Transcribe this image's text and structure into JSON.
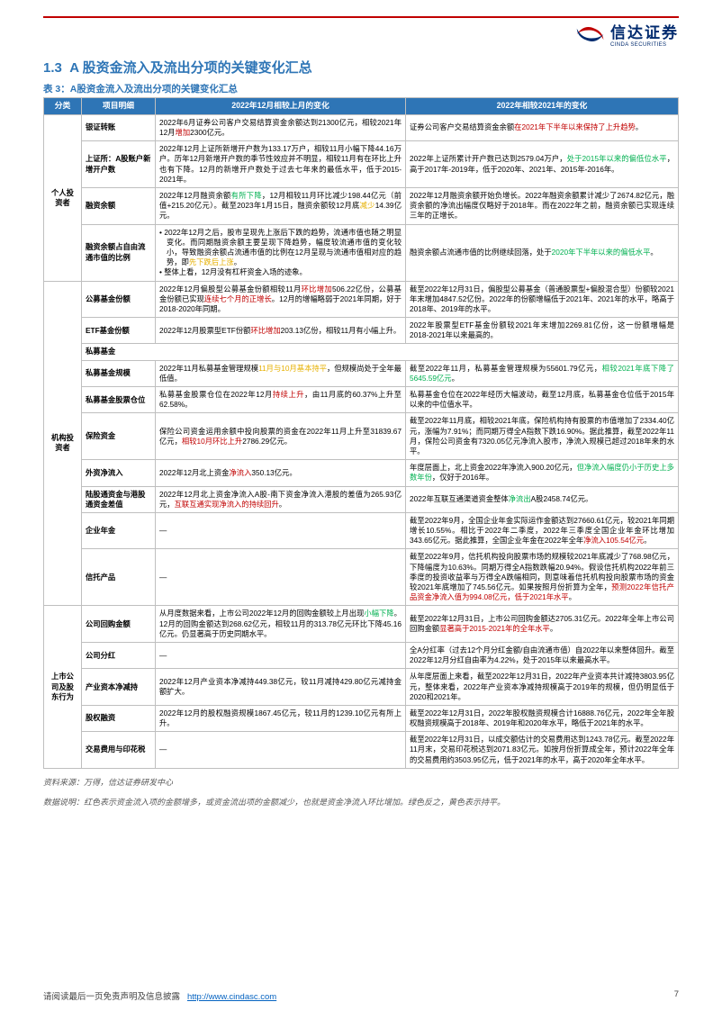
{
  "logo": {
    "cn": "信达证券",
    "en": "CINDA SECURITIES"
  },
  "section_number": "1.3",
  "section_title": "A 股资金流入及流出分项的关键变化汇总",
  "table_title": "表 3：A股资金流入及流出分项的关键变化汇总",
  "columns": [
    "分类",
    "项目明细",
    "2022年12月相较上月的变化",
    "2022年相较2021年的变化"
  ],
  "col_widths": [
    "42px",
    "82px",
    "auto",
    "auto"
  ],
  "header_bg": "#2e75b6",
  "header_color": "#ffffff",
  "border_color": "#bfbfbf",
  "colors": {
    "increase": "#c00000",
    "decrease": "#00b050",
    "flat": "#e6b000"
  },
  "rows": [
    {
      "category": "个人投资者",
      "rowspan": 4,
      "items": [
        {
          "name": "银证转账",
          "m": "2022年6月证券公司客户交易结算资金余额达到21300亿元，相较2021年12月<r>增加</r>2300亿元。",
          "y": "证券公司客户交易结算资金余额<r>在2021年下半年以来保持了上升趋势</r>。"
        },
        {
          "name": "上证所：A股账户新增开户数",
          "m": "2022年12月上证所新增开户数为133.17万户，相较11月小幅下降44.16万户。历年12月新增开户数的季节性效应并不明显，相较11月有在环比上升也有下降。12月的新增开户数处于过去七年来的最低水平，低于2015-2021年。",
          "y": "2022年上证所累计开户数已达到2579.04万户，<g>处于2015年以来的偏低位水平</g>，高于2017年-2019年，低于2020年、2021年、2015年-2016年。"
        },
        {
          "name": "融资余额",
          "m": "2022年12月融资余额<g>有所下降</g>，12月相较11月环比减少198.44亿元（前值+215.20亿元）。截至2023年1月15日，融资余额较12月底<y>减少</y>14.39亿元。",
          "y": "2022年12月融资余额开始负增长。2022年融资余额累计减少了2674.82亿元，融资余额的净流出幅度仅略好于2018年。而在2022年之前，融资余额已实现连续三年的正增长。"
        },
        {
          "name": "融资余额占自由流通市值的比例",
          "m": "<b>• 2022年12月之后，股市呈现先上涨后下跌的趋势，流通市值也随之明显变化。而同期融资余额主要呈现下降趋势，幅度较流通市值的变化较小，导致融资余额占流通市值的比例在12月呈现与流通市值相对应的趋势，即<y>先下跌后上涨</y>。</b><b>• 整体上看，12月没有杠杆资金入场的迹象。</b>",
          "y": "融资余额占流通市值的比例继续回落，处于<g>2020年下半年以来的偏低水平</g>。"
        }
      ]
    },
    {
      "category": "机构投资者",
      "rowspan": 10,
      "items": [
        {
          "name": "公募基金份额",
          "m": "2022年12月偏股型公募基金份额相较11月<r>环比增加</r>506.22亿份，公募基金份额已实现<r>连续七个月的正增长</r>。12月的增幅略弱于2021年同期，好于2018-2020年同期。",
          "y": "截至2022年12月31日，偏股型公募基金（普通股票型+偏股混合型）份额较2021年末增加4847.52亿份。2022年的份额增幅低于2021年、2021年的水平，略高于2018年、2019年的水平。"
        },
        {
          "name": "ETF基金份额",
          "m": "2022年12月股票型ETF份额<r>环比增加</r>203.13亿份，相较11月有小幅上升。",
          "y": "2022年股票型ETF基金份额较2021年末增加2269.81亿份，这一份额增幅是2018-2021年以来最高的。"
        },
        {
          "name": "私募基金",
          "m": "",
          "y": "",
          "header": true
        },
        {
          "name": "私募基金规模",
          "m": "2022年11月私募基金管理规模<y>11月与10月基本持平</y>，但规模尚处于全年最低值。",
          "y": "截至2022年11月，私募基金管理规模为55601.79亿元，<g>相较2021年底下降了5645.59亿元</g>。"
        },
        {
          "name": "私募基金股票仓位",
          "m": "私募基金股票仓位在2022年12月<r>持续上升</r>，由11月底的60.37%上升至62.58%。",
          "y": "私募基金仓位在2022年经历大幅波动，截至12月底，私募基金仓位低于2015年以来的中位值水平。"
        },
        {
          "name": "保险资金",
          "m": "保险公司资金运用余额中投向股票的资金在2022年11月上升至31839.67亿元，<r>相较10月环比上升</r>2786.29亿元。",
          "y": "截至2022年11月底，相较2021年底，保险机构持有股票的市值增加了2334.40亿元，涨幅为7.91%；而同期万得全A指数下跌16.90%。据此推算，截至2022年11月，保险公司资金有7320.05亿元净流入股市，净流入规模已超过2018年来的水平。"
        },
        {
          "name": "外资净流入",
          "m": "2022年12月北上资金<r>净流入</r>350.13亿元。",
          "y": "年度层面上，北上资金2022年净流入900.20亿元，<g>但净流入幅度仍小于历史上多数年份</g>，仅好于2016年。"
        },
        {
          "name": "陆股通资金与港股通资金差值",
          "m": "2022年12月北上资金净流入A股-南下资金净流入港股的差值为265.93亿元，<r>互联互通实现净流入的持续回升</r>。",
          "y": "2022年互联互通渠道资金整体<g>净流出</g>A股2458.74亿元。"
        },
        {
          "name": "企业年金",
          "m": "—",
          "y": "截至2022年9月，全国企业年金实际运作金额达到27660.61亿元，较2021年同期增长10.55%。相比于2022年二季度，2022年三季度全国企业年金环比增加343.65亿元。据此推算，全国企业年金在2022年全年<r>净流入105.54亿元</r>。"
        },
        {
          "name": "信托产品",
          "m": "—",
          "y": "截至2022年9月，信托机构投向股票市场的规模较2021年底减少了768.98亿元，下降幅度为10.63%。同期万得全A指数跌幅20.94%。假设信托机构2022年前三季度的投资收益率与万得全A跌幅相同，则意味着信托机构投向股票市场的资金较2021年底增加了745.56亿元。如果按照月份折算为全年，<r>预测2022年信托产品资金净流入值为994.08亿元，低于2021年水平</r>。"
        }
      ]
    },
    {
      "category": "上市公司及股东行为",
      "rowspan": 5,
      "items": [
        {
          "name": "公司回购金额",
          "m": "从月度数据来看，上市公司2022年12月的回购金额较上月出现<g>小幅下降</g>。12月的回购金额达到268.62亿元，相较11月的313.78亿元环比下降45.16亿元。仍显著高于历史同期水平。",
          "y": "截至2022年12月31日，上市公司回购金额达2705.31亿元。2022年全年上市公司回购金额<r>显著高于2015-2021年的全年水平</r>。"
        },
        {
          "name": "公司分红",
          "m": "—",
          "y": "全A分红率（过去12个月分红金额/自由流通市值）自2022年以来整体回升。截至2022年12月分红自由率为4.22%，处于2015年以来最高水平。"
        },
        {
          "name": "产业资本净减持",
          "m": "2022年12月产业资本净减持449.38亿元，较11月减持429.80亿元减持金额扩大。",
          "y": "从年度层面上来看，截至2022年12月31日，2022年产业资本共计减持3803.95亿元，整体来看，2022年产业资本净减持规模高于2019年的规模，但仍明显低于2020和2021年。"
        },
        {
          "name": "股权融资",
          "m": "2022年12月的股权融资规模1867.45亿元，较11月的1239.10亿元有所上升。",
          "y": "截至2022年12月31日，2022年股权融资规模合计16888.76亿元，2022年全年股权融资规模高于2018年、2019年和2020年水平，略低于2021年的水平。"
        },
        {
          "name": "交易费用与印花税",
          "m": "—",
          "y": "截至2022年12月31日，以成交额估计的交易费用达到1243.78亿元。截至2022年11月末，交易印花税达到2071.83亿元。如按月份折算成全年，预计2022年全年的交易费用约3503.95亿元，低于2021年的水平，高于2020年全年水平。"
        }
      ]
    }
  ],
  "source_note": "资料来源：万得，信达证券研发中心",
  "data_note": "数据说明：红色表示资金流入项的金额增多，或资金流出项的金额减少，也就是资金净流入环比增加。绿色反之，黄色表示持平。",
  "footer_text": "请阅读最后一页免责声明及信息披露",
  "footer_url": "http://www.cindasc.com",
  "page_number": "7"
}
